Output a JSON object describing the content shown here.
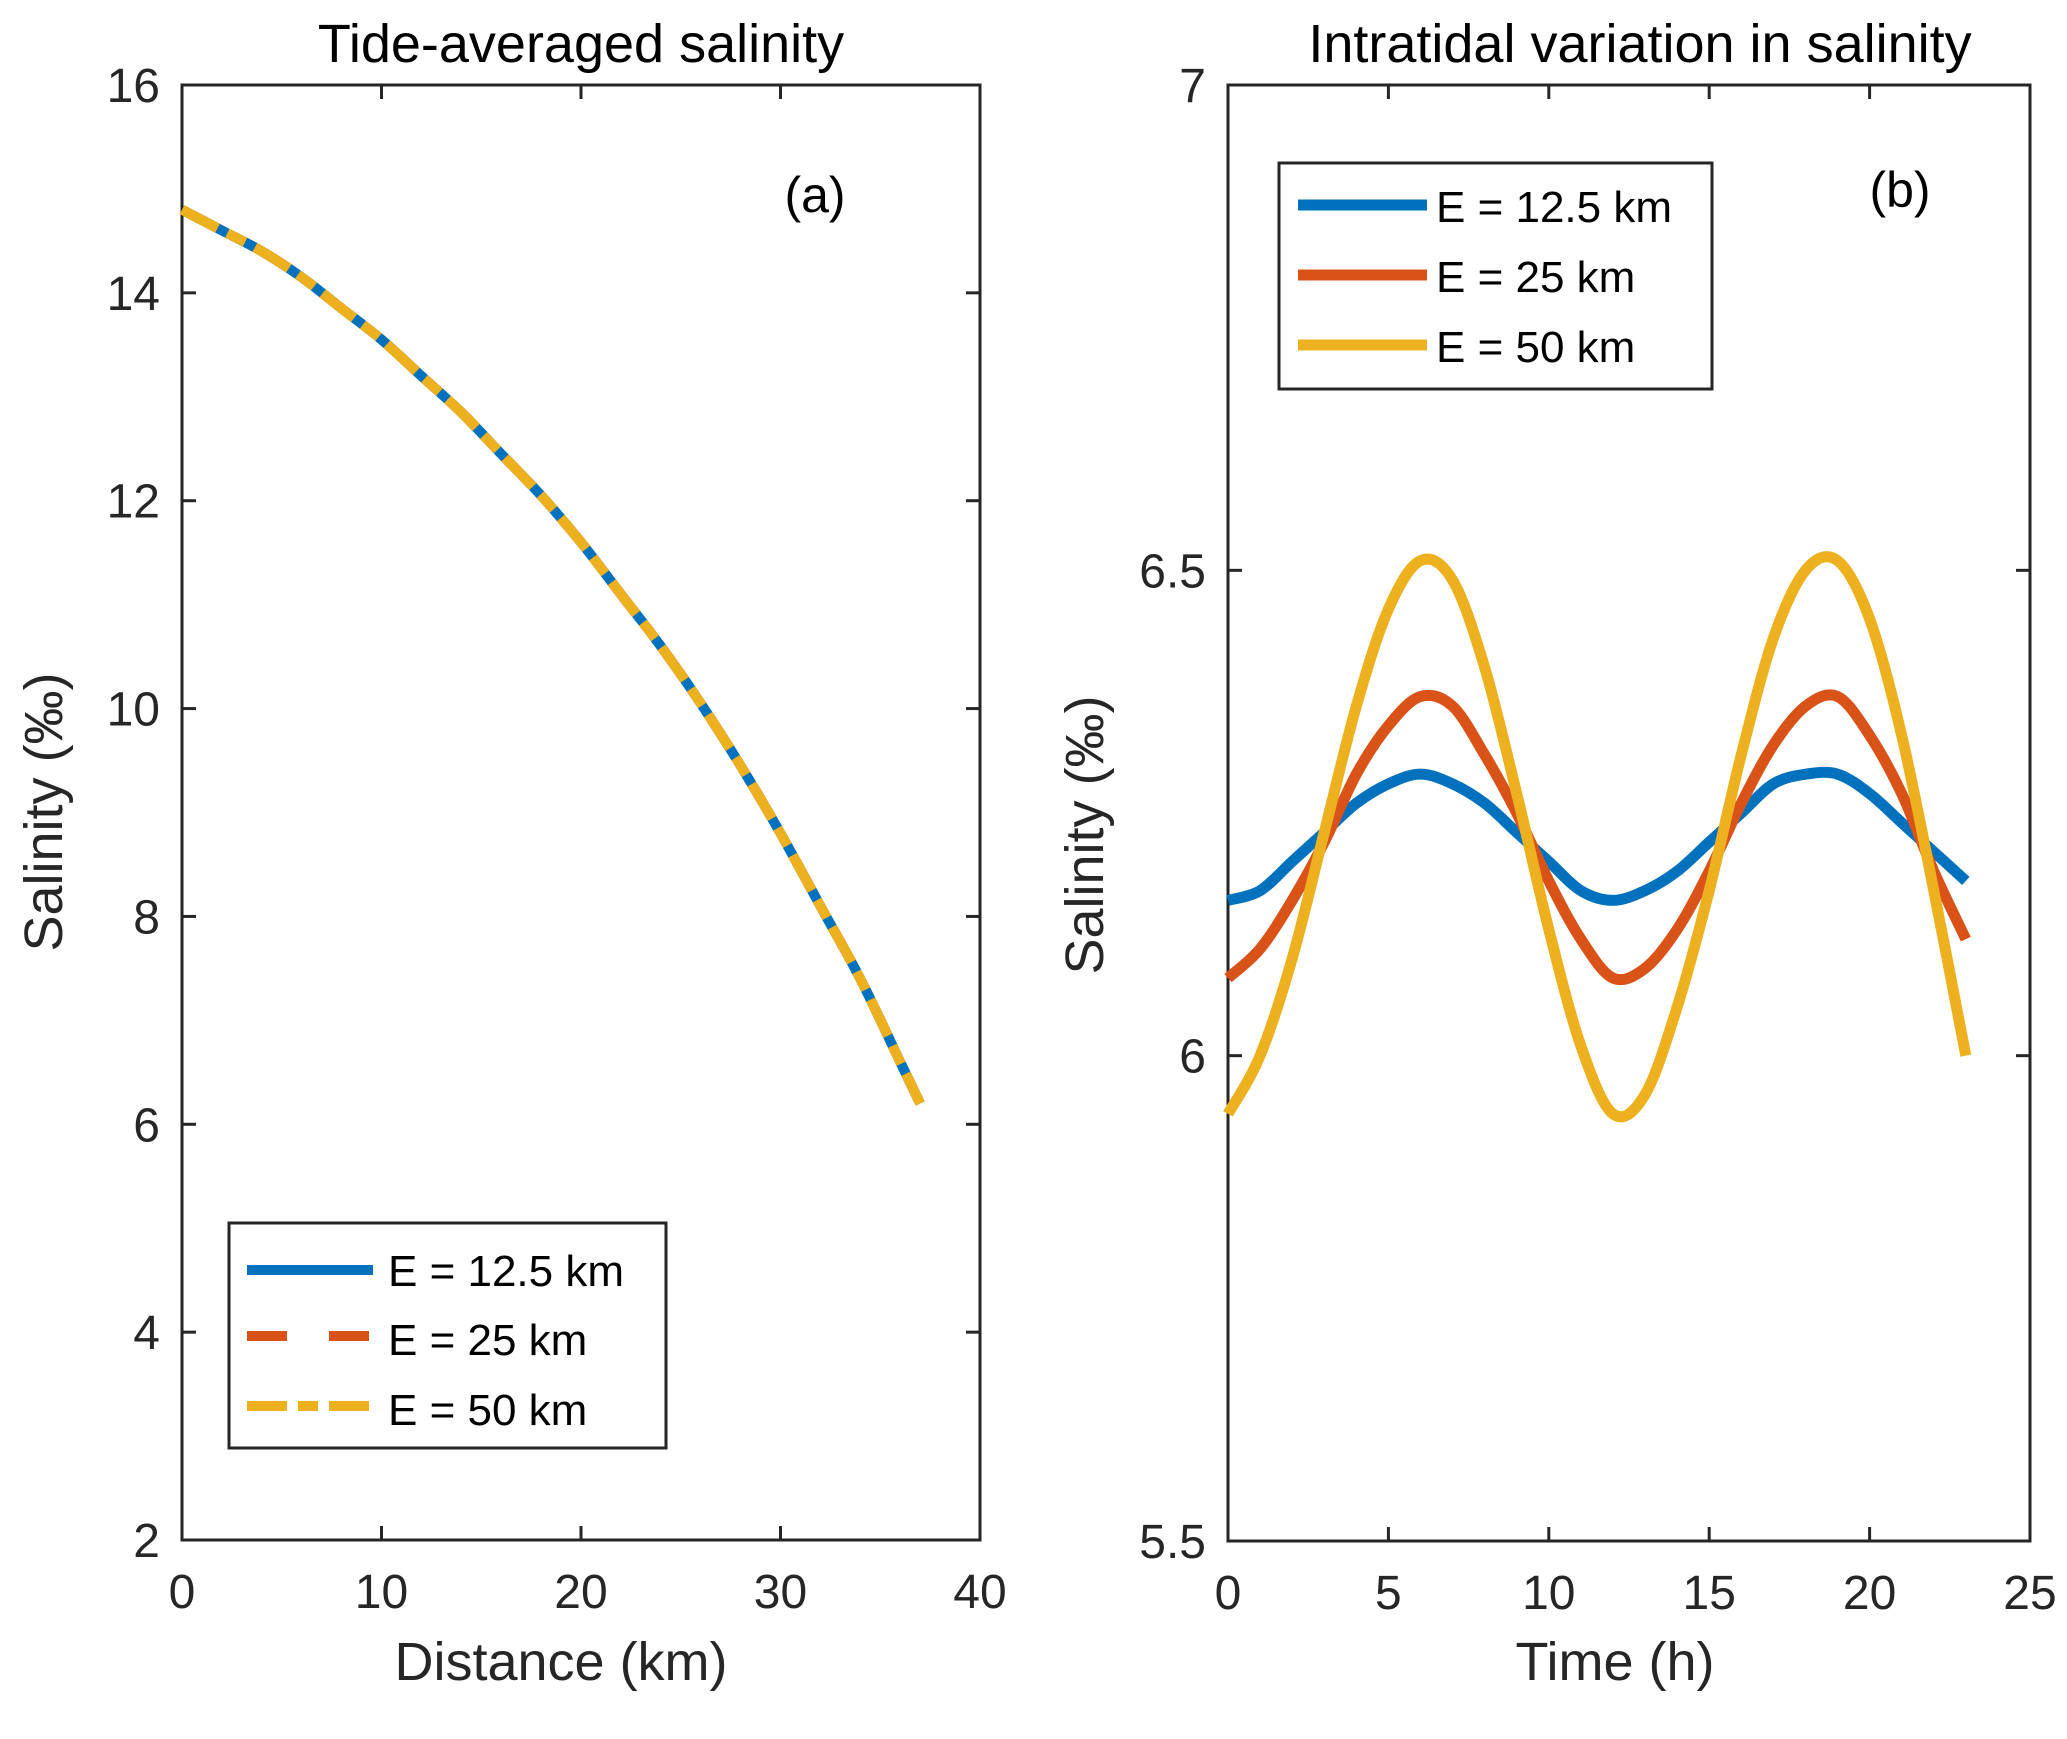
{
  "chart_data": [
    {
      "type": "line",
      "panel_label": "(a)",
      "title": "Tide-averaged salinity",
      "xlabel": "Distance (km)",
      "ylabel": "Salinity (‰)",
      "xlim": [
        0,
        40
      ],
      "ylim": [
        2,
        16
      ],
      "xticks": [
        0,
        10,
        20,
        30,
        40
      ],
      "yticks": [
        2,
        4,
        6,
        8,
        10,
        12,
        14,
        16
      ],
      "grid": false,
      "legend_position": "bottom-left",
      "x": [
        0,
        2,
        4,
        6,
        8,
        10,
        12,
        14,
        16,
        18,
        20,
        22,
        24,
        26,
        28,
        30,
        32,
        34,
        36,
        37
      ],
      "series": [
        {
          "name": "E = 12.5 km",
          "color": "#0072BD",
          "style": "solid",
          "values": [
            14.8,
            14.6,
            14.4,
            14.15,
            13.85,
            13.55,
            13.2,
            12.85,
            12.45,
            12.05,
            11.6,
            11.1,
            10.6,
            10.05,
            9.45,
            8.8,
            8.1,
            7.4,
            6.6,
            6.2
          ]
        },
        {
          "name": "E = 25 km",
          "color": "#D95319",
          "style": "dashed",
          "values": [
            14.8,
            14.6,
            14.4,
            14.15,
            13.85,
            13.55,
            13.2,
            12.85,
            12.45,
            12.05,
            11.6,
            11.1,
            10.6,
            10.05,
            9.45,
            8.8,
            8.1,
            7.4,
            6.6,
            6.2
          ]
        },
        {
          "name": "E = 50 km",
          "color": "#EDB120",
          "style": "dash-dot",
          "values": [
            14.8,
            14.6,
            14.4,
            14.15,
            13.85,
            13.55,
            13.2,
            12.85,
            12.45,
            12.05,
            11.6,
            11.1,
            10.6,
            10.05,
            9.45,
            8.8,
            8.1,
            7.4,
            6.6,
            6.2
          ]
        }
      ]
    },
    {
      "type": "line",
      "panel_label": "(b)",
      "title": "Intratidal variation in salinity",
      "xlabel": "Time  (h)",
      "ylabel": "Salinity (‰)",
      "xlim": [
        0,
        25
      ],
      "ylim": [
        5.5,
        7
      ],
      "xticks": [
        0,
        5,
        10,
        15,
        20,
        25
      ],
      "yticks": [
        5.5,
        6,
        6.5,
        7
      ],
      "ytick_labels": [
        "5.5",
        "6",
        "6.5",
        "7"
      ],
      "grid": false,
      "legend_position": "top-left",
      "x": [
        0,
        1,
        2,
        3,
        4,
        5,
        6,
        7,
        8,
        9,
        10,
        11,
        12,
        13,
        14,
        15,
        16,
        17,
        18,
        19,
        20,
        21,
        22,
        23
      ],
      "series": [
        {
          "name": "E = 12.5 km",
          "color": "#0072BD",
          "style": "solid",
          "values": [
            6.16,
            6.17,
            6.2,
            6.23,
            6.26,
            6.28,
            6.29,
            6.28,
            6.26,
            6.23,
            6.2,
            6.17,
            6.16,
            6.17,
            6.19,
            6.22,
            6.25,
            6.28,
            6.29,
            6.29,
            6.27,
            6.24,
            6.21,
            6.18
          ]
        },
        {
          "name": "E = 25 km",
          "color": "#D95319",
          "style": "solid",
          "values": [
            6.08,
            6.11,
            6.16,
            6.22,
            6.29,
            6.34,
            6.37,
            6.36,
            6.31,
            6.25,
            6.18,
            6.12,
            6.08,
            6.09,
            6.13,
            6.19,
            6.26,
            6.32,
            6.36,
            6.37,
            6.33,
            6.27,
            6.19,
            6.12
          ]
        },
        {
          "name": "E = 50 km",
          "color": "#EDB120",
          "style": "solid",
          "values": [
            5.94,
            6.0,
            6.1,
            6.23,
            6.36,
            6.46,
            6.51,
            6.49,
            6.4,
            6.27,
            6.13,
            6.01,
            5.94,
            5.96,
            6.05,
            6.17,
            6.31,
            6.43,
            6.5,
            6.51,
            6.45,
            6.33,
            6.17,
            6.0
          ]
        }
      ]
    }
  ]
}
